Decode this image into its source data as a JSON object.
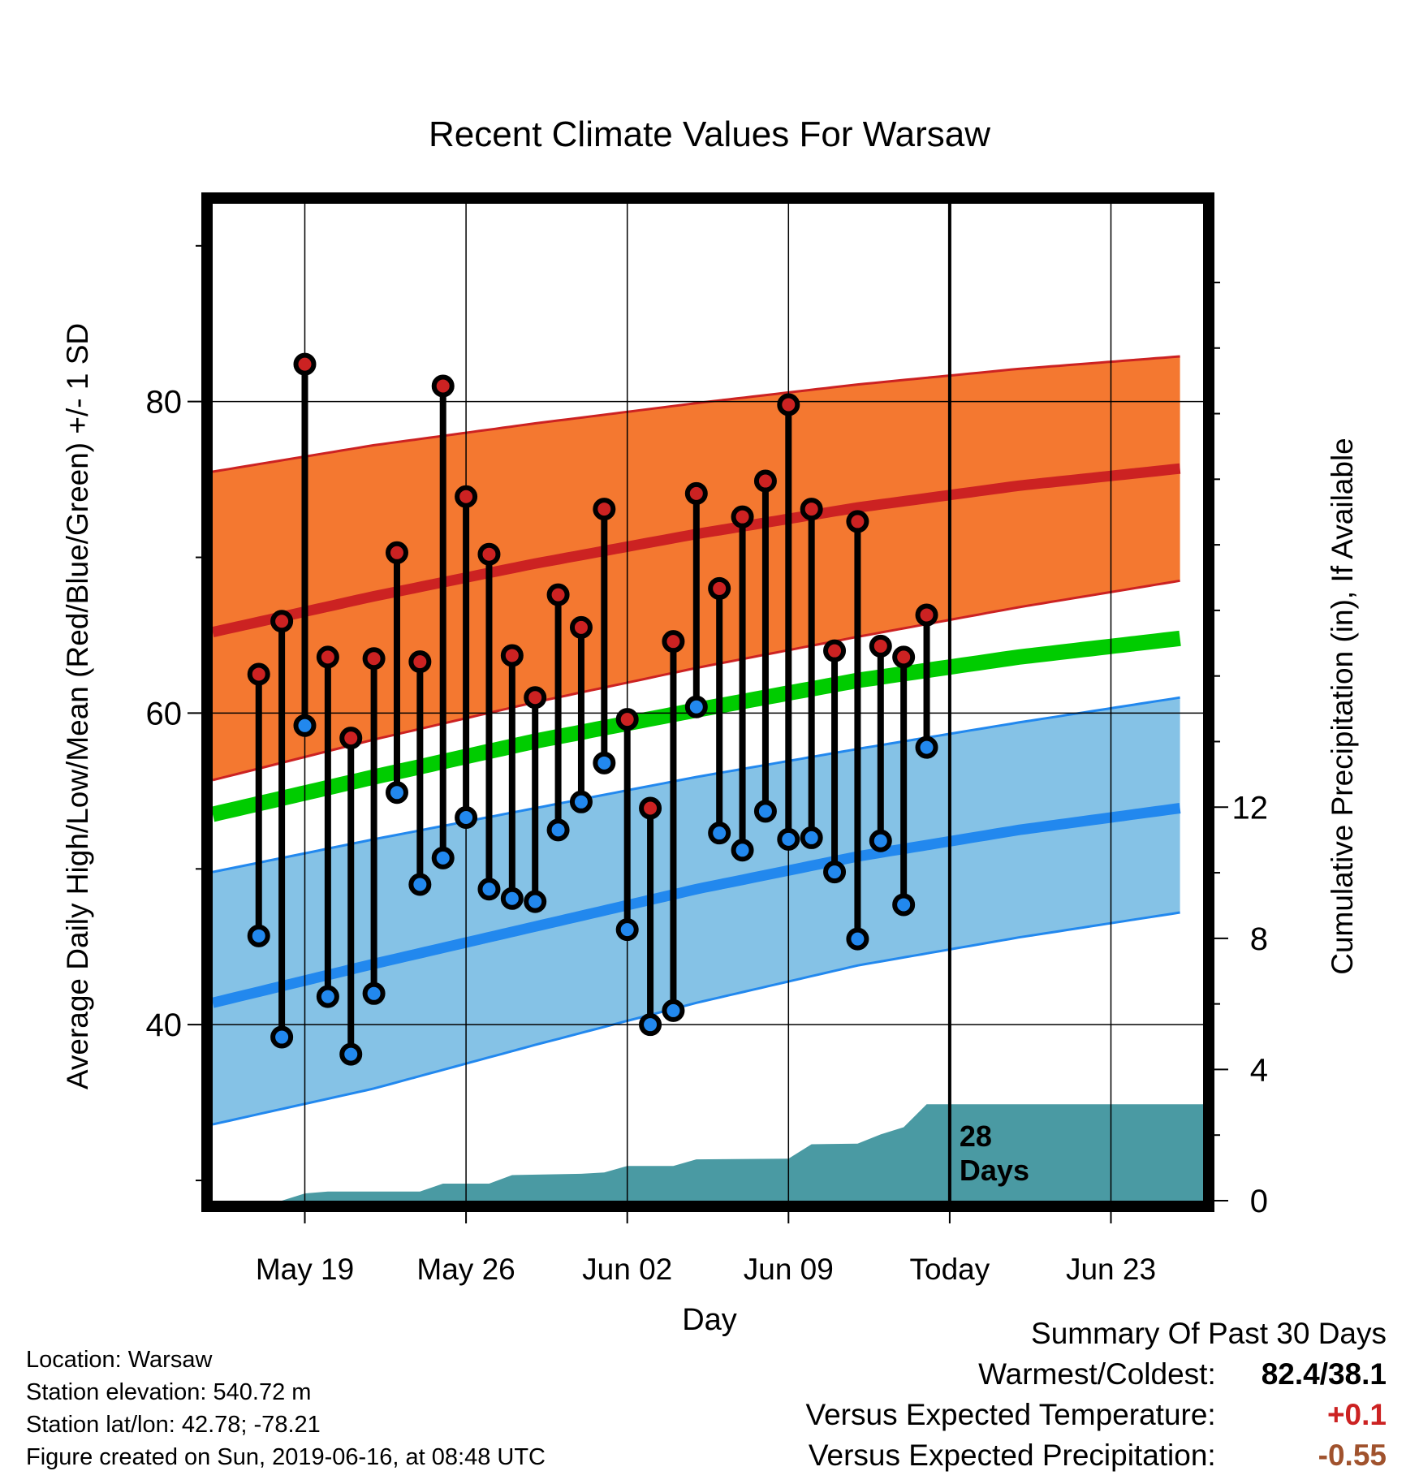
{
  "chart_data": {
    "type": "line",
    "title": "Recent Climate Values For Warsaw",
    "xlabel": "Day",
    "ylabel": "Average Daily High/Low/Mean (Red/Blue/Green) +/- 1 SD",
    "y2label": "Cumulative Precipitation (in), If Available",
    "ylim": [
      28.7,
      92.7
    ],
    "y2lim": [
      0,
      30.4
    ],
    "xlim": [
      "2019-05-15",
      "2019-06-27"
    ],
    "x_ticks": [
      {
        "date": "2019-05-19",
        "label": "May 19"
      },
      {
        "date": "2019-05-26",
        "label": "May 26"
      },
      {
        "date": "2019-06-02",
        "label": "Jun 02"
      },
      {
        "date": "2019-06-09",
        "label": "Jun 09"
      },
      {
        "date": "2019-06-16",
        "label": "Today"
      },
      {
        "date": "2019-06-23",
        "label": "Jun 23"
      }
    ],
    "y_ticks": [
      40,
      60,
      80
    ],
    "y2_ticks": [
      0,
      4,
      8,
      12
    ],
    "today_date": "2019-06-16",
    "today_note": [
      "28",
      "Days"
    ],
    "normals": {
      "dates": [
        "2019-05-15",
        "2019-05-22",
        "2019-05-29",
        "2019-06-05",
        "2019-06-12",
        "2019-06-19",
        "2019-06-26"
      ],
      "high_mean": [
        65.2,
        67.5,
        69.6,
        71.5,
        73.2,
        74.6,
        75.7
      ],
      "high_upper": [
        75.5,
        77.2,
        78.6,
        79.9,
        81.1,
        82.1,
        82.9
      ],
      "high_lower": [
        55.7,
        58.3,
        60.7,
        62.9,
        64.9,
        66.8,
        68.5
      ],
      "mean": [
        53.5,
        55.9,
        58.2,
        60.2,
        62.1,
        63.6,
        64.8
      ],
      "low_mean": [
        41.4,
        43.9,
        46.3,
        48.7,
        50.8,
        52.5,
        53.9
      ],
      "low_upper": [
        49.8,
        51.9,
        53.9,
        55.9,
        57.7,
        59.4,
        61.0
      ],
      "low_lower": [
        33.6,
        35.9,
        38.7,
        41.4,
        43.8,
        45.6,
        47.2
      ]
    },
    "series": [
      {
        "name": "High",
        "color": "#cc2222",
        "dates": [
          "2019-05-17",
          "2019-05-18",
          "2019-05-19",
          "2019-05-20",
          "2019-05-21",
          "2019-05-22",
          "2019-05-23",
          "2019-05-24",
          "2019-05-25",
          "2019-05-26",
          "2019-05-27",
          "2019-05-28",
          "2019-05-29",
          "2019-05-30",
          "2019-05-31",
          "2019-06-01",
          "2019-06-02",
          "2019-06-03",
          "2019-06-04",
          "2019-06-05",
          "2019-06-06",
          "2019-06-07",
          "2019-06-08",
          "2019-06-09",
          "2019-06-10",
          "2019-06-11",
          "2019-06-12",
          "2019-06-13",
          "2019-06-14",
          "2019-06-15"
        ],
        "values": [
          62.5,
          65.9,
          82.4,
          63.6,
          58.4,
          63.5,
          70.3,
          63.3,
          81.0,
          73.9,
          70.2,
          63.7,
          61.0,
          67.6,
          65.5,
          73.1,
          59.6,
          53.9,
          64.6,
          74.1,
          68.0,
          72.6,
          74.9,
          79.8,
          73.1,
          64.0,
          72.3,
          64.3,
          63.6,
          66.3
        ]
      },
      {
        "name": "Low",
        "color": "#2288ee",
        "dates": [
          "2019-05-17",
          "2019-05-18",
          "2019-05-19",
          "2019-05-20",
          "2019-05-21",
          "2019-05-22",
          "2019-05-23",
          "2019-05-24",
          "2019-05-25",
          "2019-05-26",
          "2019-05-27",
          "2019-05-28",
          "2019-05-29",
          "2019-05-30",
          "2019-05-31",
          "2019-06-01",
          "2019-06-02",
          "2019-06-03",
          "2019-06-04",
          "2019-06-05",
          "2019-06-06",
          "2019-06-07",
          "2019-06-08",
          "2019-06-09",
          "2019-06-10",
          "2019-06-11",
          "2019-06-12",
          "2019-06-13",
          "2019-06-14",
          "2019-06-15"
        ],
        "values": [
          45.7,
          39.2,
          59.2,
          41.8,
          38.1,
          42.0,
          54.9,
          49.0,
          50.7,
          53.3,
          48.7,
          48.1,
          47.9,
          52.5,
          54.3,
          56.8,
          46.1,
          40.0,
          40.9,
          60.4,
          52.3,
          51.2,
          53.7,
          51.9,
          52.0,
          49.8,
          45.5,
          51.8,
          47.7,
          57.8
        ]
      }
    ],
    "precip": {
      "color": "#4a9aa3",
      "dates": [
        "2019-05-15",
        "2019-05-18",
        "2019-05-19",
        "2019-05-20",
        "2019-05-24",
        "2019-05-25",
        "2019-05-27",
        "2019-05-28",
        "2019-05-31",
        "2019-06-01",
        "2019-06-02",
        "2019-06-04",
        "2019-06-05",
        "2019-06-09",
        "2019-06-10",
        "2019-06-12",
        "2019-06-13",
        "2019-06-14",
        "2019-06-15",
        "2019-06-27"
      ],
      "values": [
        0,
        0,
        0.22,
        0.28,
        0.28,
        0.52,
        0.52,
        0.78,
        0.82,
        0.86,
        1.06,
        1.06,
        1.26,
        1.28,
        1.72,
        1.74,
        2.02,
        2.24,
        2.94,
        2.94
      ]
    },
    "colors": {
      "high_band": "#f47830",
      "high_line": "#cc2222",
      "low_band": "#85c2e6",
      "low_line": "#2288ee",
      "mean_line": "#00cc00",
      "precip": "#4a9aa3"
    }
  },
  "info": {
    "location": "Location: Warsaw",
    "elevation": "Station elevation: 540.72 m",
    "latlon": "Station lat/lon: 42.78; -78.21",
    "created": "Figure created on Sun, 2019-06-16, at 08:48 UTC"
  },
  "summary": {
    "title": "Summary Of Past 30 Days",
    "warmest_coldest_label": "Warmest/Coldest:",
    "warmest_coldest_value": "82.4/38.1",
    "temp_label": "Versus Expected Temperature:",
    "temp_value": "+0.1",
    "temp_color": "#cc2222",
    "precip_label": "Versus Expected Precipitation:",
    "precip_value": "-0.55",
    "precip_color": "#a0522d"
  }
}
